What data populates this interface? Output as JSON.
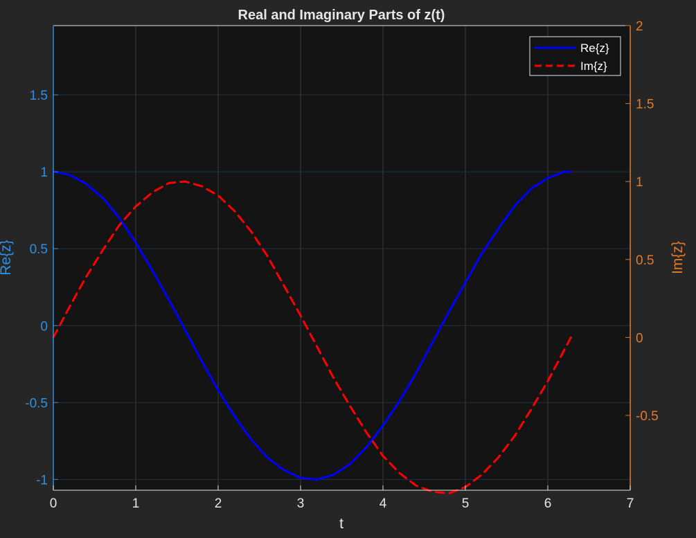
{
  "chart_data": {
    "type": "line",
    "title": "Real and Imaginary Parts of z(t)",
    "xlabel": "t",
    "ylabel_left": "Re{z}",
    "ylabel_right": "Im{z}",
    "xlim": [
      0,
      7
    ],
    "ylim_left": [
      -1.07,
      1.95
    ],
    "ylim_right": [
      -0.98,
      2.0
    ],
    "x_ticks": [
      0,
      1,
      2,
      3,
      4,
      5,
      6,
      7
    ],
    "y_ticks_left": [
      -1,
      -0.5,
      0,
      0.5,
      1,
      1.5
    ],
    "y_ticks_right": [
      -0.5,
      0,
      0.5,
      1,
      1.5,
      2
    ],
    "grid": true,
    "legend_position": "top-right",
    "colors": {
      "background": "#262626",
      "plot_background": "#141414",
      "grid": "#3d3d3d",
      "left_axis": "#2f8fe0",
      "right_axis": "#e07b2a",
      "re_series": "#0000ff",
      "im_series": "#ff0000"
    },
    "series": [
      {
        "name": "Re{z}",
        "axis": "left",
        "style": "solid",
        "x": [
          0,
          0.2,
          0.4,
          0.6,
          0.8,
          1.0,
          1.2,
          1.4,
          1.6,
          1.8,
          2.0,
          2.2,
          2.4,
          2.6,
          2.8,
          3.0,
          3.2,
          3.4,
          3.6,
          3.8,
          4.0,
          4.2,
          4.4,
          4.6,
          4.8,
          5.0,
          5.2,
          5.4,
          5.6,
          5.8,
          6.0,
          6.2,
          6.28
        ],
        "y": [
          1.0,
          0.98,
          0.92,
          0.83,
          0.7,
          0.54,
          0.36,
          0.17,
          -0.03,
          -0.23,
          -0.42,
          -0.59,
          -0.74,
          -0.86,
          -0.94,
          -0.99,
          -1.0,
          -0.97,
          -0.9,
          -0.79,
          -0.65,
          -0.49,
          -0.31,
          -0.11,
          0.09,
          0.28,
          0.47,
          0.63,
          0.78,
          0.89,
          0.96,
          1.0,
          1.0
        ]
      },
      {
        "name": "Im{z}",
        "axis": "right",
        "style": "dashed",
        "x": [
          0,
          0.2,
          0.4,
          0.6,
          0.8,
          1.0,
          1.2,
          1.4,
          1.6,
          1.8,
          2.0,
          2.2,
          2.4,
          2.6,
          2.8,
          3.0,
          3.2,
          3.4,
          3.6,
          3.8,
          4.0,
          4.2,
          4.4,
          4.6,
          4.8,
          5.0,
          5.2,
          5.4,
          5.6,
          5.8,
          6.0,
          6.2,
          6.28
        ],
        "y": [
          0.0,
          0.2,
          0.39,
          0.56,
          0.72,
          0.84,
          0.93,
          0.99,
          1.0,
          0.97,
          0.91,
          0.81,
          0.68,
          0.52,
          0.33,
          0.14,
          -0.06,
          -0.26,
          -0.44,
          -0.61,
          -0.76,
          -0.87,
          -0.95,
          -0.99,
          -1.0,
          -0.96,
          -0.88,
          -0.77,
          -0.63,
          -0.46,
          -0.28,
          -0.08,
          0.0
        ]
      }
    ]
  }
}
